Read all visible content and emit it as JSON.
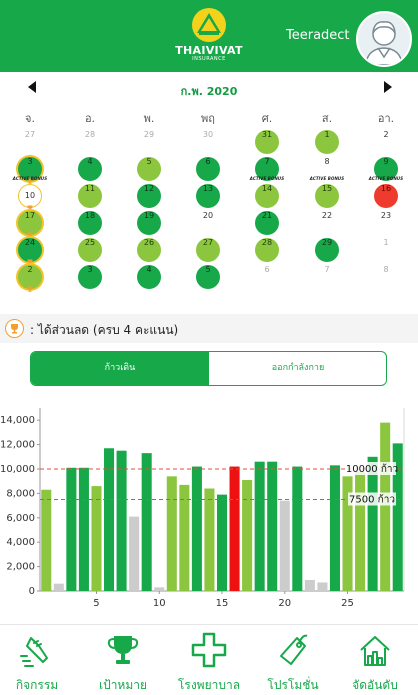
{
  "header": {
    "brand": "THAIVIVAT",
    "brand_sub": "INSURANCE",
    "username": "Teeradect",
    "logo_icon": "thaivivat-roof-logo",
    "avatar_icon": "user-avatar"
  },
  "calendar": {
    "month_title": "ก.พ. 2020",
    "prev_icon": "triangle-left-icon",
    "next_icon": "triangle-right-icon",
    "weekdays": [
      "จ.",
      "อ.",
      "พ.",
      "พฤ",
      "ศ.",
      "ส.",
      "อา."
    ],
    "active_tag": "ACTIVE BONUS",
    "weeks": [
      [
        {
          "d": "27",
          "s": "other"
        },
        {
          "d": "28",
          "s": "other"
        },
        {
          "d": "29",
          "s": "other"
        },
        {
          "d": "30",
          "s": "other"
        },
        {
          "d": "31",
          "s": "light"
        },
        {
          "d": "1",
          "s": "light"
        },
        {
          "d": "2",
          "s": "plain"
        }
      ],
      [
        {
          "d": "3",
          "s": "green",
          "ring": true,
          "cup": true
        },
        {
          "d": "4",
          "s": "green"
        },
        {
          "d": "5",
          "s": "light"
        },
        {
          "d": "6",
          "s": "green"
        },
        {
          "d": "7",
          "s": "green"
        },
        {
          "d": "8",
          "s": "plain"
        },
        {
          "d": "9",
          "s": "green"
        }
      ],
      [
        {
          "d": "10",
          "s": "outline",
          "cup": true,
          "tag": true
        },
        {
          "d": "11",
          "s": "light"
        },
        {
          "d": "12",
          "s": "green"
        },
        {
          "d": "13",
          "s": "green"
        },
        {
          "d": "14",
          "s": "light",
          "tag": true
        },
        {
          "d": "15",
          "s": "light",
          "tag": true
        },
        {
          "d": "16",
          "s": "red",
          "tag": true
        }
      ],
      [
        {
          "d": "17",
          "s": "light",
          "ring": true,
          "cup": true
        },
        {
          "d": "18",
          "s": "green"
        },
        {
          "d": "19",
          "s": "green"
        },
        {
          "d": "20",
          "s": "plain"
        },
        {
          "d": "21",
          "s": "green"
        },
        {
          "d": "22",
          "s": "plain"
        },
        {
          "d": "23",
          "s": "plain"
        }
      ],
      [
        {
          "d": "24",
          "s": "green",
          "ring": true,
          "cup": true
        },
        {
          "d": "25",
          "s": "light"
        },
        {
          "d": "26",
          "s": "light"
        },
        {
          "d": "27",
          "s": "light"
        },
        {
          "d": "28",
          "s": "light"
        },
        {
          "d": "29",
          "s": "green"
        },
        {
          "d": "1",
          "s": "other"
        }
      ],
      [
        {
          "d": "2",
          "s": "light",
          "ring": true,
          "cup": true
        },
        {
          "d": "3",
          "s": "green"
        },
        {
          "d": "4",
          "s": "green"
        },
        {
          "d": "5",
          "s": "green"
        },
        {
          "d": "6",
          "s": "other"
        },
        {
          "d": "7",
          "s": "other"
        },
        {
          "d": "8",
          "s": "other"
        }
      ]
    ]
  },
  "discount": {
    "text": ": ได้ส่วนลด (ครบ 4 คะแนน)",
    "icon": "trophy-icon"
  },
  "segment": {
    "tab_walk": "ก้าวเดิน",
    "tab_exercise": "ออกกำลังกาย",
    "active": "walk"
  },
  "chart_data": {
    "type": "bar",
    "x": [
      1,
      2,
      3,
      4,
      5,
      6,
      7,
      8,
      9,
      10,
      11,
      12,
      13,
      14,
      15,
      16,
      17,
      18,
      19,
      20,
      21,
      22,
      23,
      24,
      25,
      26,
      27,
      28,
      29
    ],
    "values": [
      8300,
      600,
      10100,
      10100,
      8600,
      11700,
      11500,
      6100,
      11300,
      300,
      9400,
      8700,
      10200,
      8400,
      7900,
      10200,
      9100,
      10600,
      10600,
      7400,
      10200,
      900,
      700,
      10300,
      9400,
      9800,
      11000,
      13800,
      12100
    ],
    "colors": [
      "light",
      "grey",
      "green",
      "green",
      "light",
      "green",
      "green",
      "grey",
      "green",
      "grey",
      "light",
      "light",
      "green",
      "light",
      "green",
      "red",
      "light",
      "green",
      "green",
      "grey",
      "green",
      "grey",
      "grey",
      "green",
      "light",
      "light",
      "green",
      "light",
      "green"
    ],
    "xticks": [
      5,
      10,
      15,
      20,
      25
    ],
    "ylim": [
      0,
      15000
    ],
    "yticks": [
      0,
      2000,
      4000,
      6000,
      8000,
      10000,
      12000,
      14000
    ],
    "ytick_labels": [
      "0",
      "2,000",
      "4,000",
      "6,000",
      "8,000",
      "10,000",
      "12,000",
      "14,000"
    ],
    "goal_lines": [
      {
        "value": 10000,
        "label": "10000 ก้าว"
      },
      {
        "value": 7500,
        "label": "7500 ก้าว"
      }
    ],
    "color_map": {
      "green": "#17a84a",
      "light": "#8cc63e",
      "grey": "#cccccc",
      "red": "#ee1111"
    },
    "grid": false,
    "legend": "none"
  },
  "bottom_nav": [
    {
      "label": "กิจกรรม",
      "icon": "running-shoe-icon"
    },
    {
      "label": "เป้าหมาย",
      "icon": "trophy-icon"
    },
    {
      "label": "โรงพยาบาล",
      "icon": "hospital-cross-icon"
    },
    {
      "label": "โปรโมชั่น",
      "icon": "price-tag-icon"
    },
    {
      "label": "จัดอันดับ",
      "icon": "ranking-icon"
    }
  ],
  "colors": {
    "brand_green": "#17a84a",
    "light_green": "#8cc63e",
    "red": "#ef3b2d",
    "gold": "#f0c42a",
    "grey": "#cccccc"
  }
}
